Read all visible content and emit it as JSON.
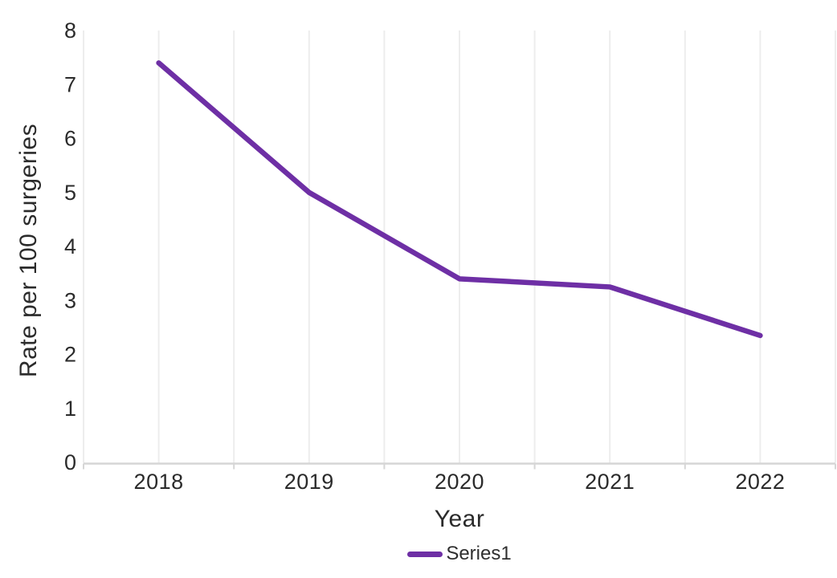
{
  "chart_data": {
    "type": "line",
    "title": "",
    "xlabel": "Year",
    "ylabel": "Rate per 100 surgeries",
    "categories": [
      "2018",
      "2019",
      "2020",
      "2021",
      "2022"
    ],
    "series": [
      {
        "name": "Series1",
        "values": [
          7.4,
          5.0,
          3.4,
          3.25,
          2.35
        ],
        "color": "#6e2fa5"
      }
    ],
    "ylim": [
      0,
      8
    ],
    "yticks": [
      0,
      1,
      2,
      3,
      4,
      5,
      6,
      7,
      8
    ],
    "grid": "vertical-only",
    "legend_position": "bottom-center"
  },
  "colors": {
    "line": "#6e2fa5",
    "gridline": "#ededed",
    "axis": "#d6d6d6",
    "tick": "#d6d6d6",
    "text": "#2b2b2b"
  }
}
